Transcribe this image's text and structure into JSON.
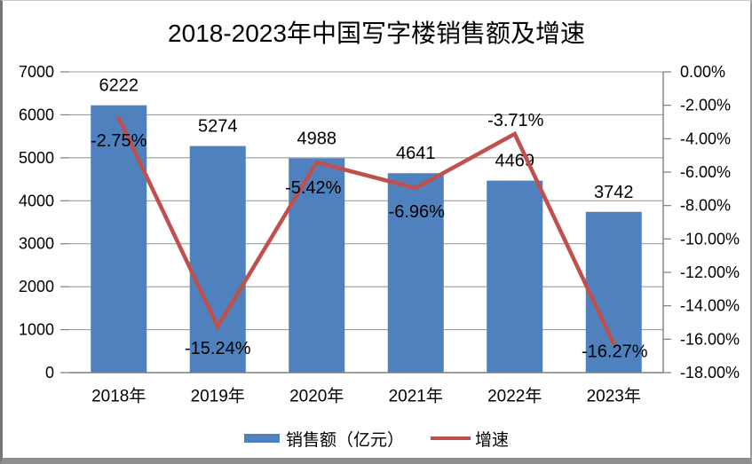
{
  "chart_data": {
    "type": "bar+line combo",
    "title": "2018-2023年中国写字楼销售额及增速",
    "categories": [
      "2018年",
      "2019年",
      "2020年",
      "2021年",
      "2022年",
      "2023年"
    ],
    "series": [
      {
        "name": "销售额（亿元）",
        "type": "bar",
        "axis": "left",
        "values": [
          6222,
          5274,
          4988,
          4641,
          4469,
          3742
        ],
        "data_labels": [
          "6222",
          "5274",
          "4988",
          "4641",
          "4469",
          "3742"
        ],
        "color": "#4E81BD"
      },
      {
        "name": "增速",
        "type": "line",
        "axis": "right",
        "values": [
          -2.75,
          -15.24,
          -5.42,
          -6.96,
          -3.71,
          -16.27
        ],
        "data_labels": [
          "-2.75%",
          "-15.24%",
          "-5.42%",
          "-6.96%",
          "-3.71%",
          "-16.27%"
        ],
        "label_offsets": [
          [
            0,
            26
          ],
          [
            0,
            25
          ],
          [
            -4,
            29
          ],
          [
            1,
            27
          ],
          [
            1,
            -15
          ],
          [
            1,
            9
          ]
        ],
        "color": "#C0504D"
      }
    ],
    "left_axis": {
      "min": 0,
      "max": 7000,
      "step": 1000,
      "tick_labels": [
        "7000",
        "6000",
        "5000",
        "4000",
        "3000",
        "2000",
        "1000",
        "0"
      ]
    },
    "right_axis": {
      "min": -18,
      "max": 0,
      "step": -2,
      "tick_labels": [
        "0.00%",
        "-2.00%",
        "-4.00%",
        "-6.00%",
        "-8.00%",
        "-10.00%",
        "-12.00%",
        "-14.00%",
        "-16.00%",
        "-18.00%"
      ]
    },
    "grid": true,
    "legend_position": "bottom",
    "colors": {
      "bar": "#4E81BD",
      "line": "#C0504D",
      "gridline": "#9e9e9e",
      "axis": "#7f7f7f",
      "text": "#000000"
    }
  }
}
